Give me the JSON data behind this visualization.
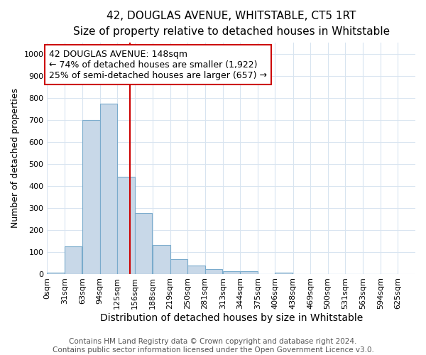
{
  "title": "42, DOUGLAS AVENUE, WHITSTABLE, CT5 1RT",
  "subtitle": "Size of property relative to detached houses in Whitstable",
  "xlabel": "Distribution of detached houses by size in Whitstable",
  "ylabel": "Number of detached properties",
  "bin_labels": [
    "0sqm",
    "31sqm",
    "63sqm",
    "94sqm",
    "125sqm",
    "156sqm",
    "188sqm",
    "219sqm",
    "250sqm",
    "281sqm",
    "313sqm",
    "344sqm",
    "375sqm",
    "406sqm",
    "438sqm",
    "469sqm",
    "500sqm",
    "531sqm",
    "563sqm",
    "594sqm",
    "625sqm"
  ],
  "bin_edges": [
    0,
    31,
    63,
    94,
    125,
    156,
    188,
    219,
    250,
    281,
    313,
    344,
    375,
    406,
    438,
    469,
    500,
    531,
    563,
    594,
    625
  ],
  "bar_heights": [
    5,
    125,
    700,
    775,
    440,
    275,
    130,
    68,
    38,
    22,
    10,
    10,
    0,
    5,
    0,
    0,
    0,
    0,
    0,
    0
  ],
  "bar_color": "#c8d8e8",
  "bar_edge_color": "#7aabcc",
  "property_size": 148,
  "red_line_color": "#cc0000",
  "annotation_line1": "42 DOUGLAS AVENUE: 148sqm",
  "annotation_line2": "← 74% of detached houses are smaller (1,922)",
  "annotation_line3": "25% of semi-detached houses are larger (657) →",
  "annotation_box_color": "#ffffff",
  "annotation_box_edge_color": "#cc0000",
  "ylim": [
    0,
    1050
  ],
  "yticks": [
    0,
    100,
    200,
    300,
    400,
    500,
    600,
    700,
    800,
    900,
    1000
  ],
  "footer_line1": "Contains HM Land Registry data © Crown copyright and database right 2024.",
  "footer_line2": "Contains public sector information licensed under the Open Government Licence v3.0.",
  "background_color": "#ffffff",
  "grid_color": "#d8e4f0",
  "title_fontsize": 11,
  "subtitle_fontsize": 10,
  "xlabel_fontsize": 10,
  "ylabel_fontsize": 9,
  "tick_fontsize": 8,
  "annotation_fontsize": 9,
  "footer_fontsize": 7.5
}
